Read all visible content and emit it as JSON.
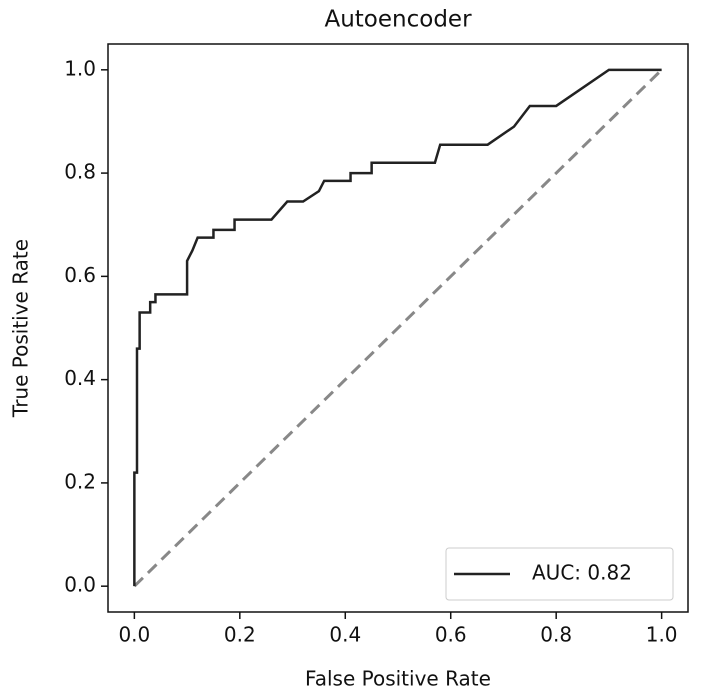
{
  "chart_data": {
    "type": "line",
    "title": "Autoencoder",
    "x_label": "False Positive Rate",
    "y_label": "True Positive Rate",
    "xlim": [
      -0.05,
      1.05
    ],
    "ylim": [
      -0.05,
      1.05
    ],
    "xticks": [
      {
        "value": 0,
        "label": "0.0"
      },
      0.2,
      0.4,
      0.6,
      0.8,
      {
        "value": 1,
        "label": "1.0"
      }
    ],
    "yticks": [
      {
        "value": 0,
        "label": "0.0"
      },
      0.2,
      0.4,
      0.6,
      0.8,
      {
        "value": 1,
        "label": "1.0"
      }
    ],
    "legend": "lower right",
    "series": [
      {
        "name": "AUC: 0.82",
        "color": "#222222",
        "linestyle": "solid",
        "x": [
          0,
          0,
          0.005,
          0.005,
          0.01,
          0.01,
          0.03,
          0.03,
          0.04,
          0.04,
          0.1,
          0.1,
          0.11,
          0.12,
          0.15,
          0.15,
          0.19,
          0.19,
          0.26,
          0.29,
          0.32,
          0.35,
          0.36,
          0.41,
          0.41,
          0.45,
          0.45,
          0.57,
          0.58,
          0.67,
          0.72,
          0.75,
          0.8,
          0.9,
          1.0
        ],
        "values": [
          0,
          0.22,
          0.22,
          0.46,
          0.46,
          0.53,
          0.53,
          0.55,
          0.55,
          0.565,
          0.565,
          0.63,
          0.65,
          0.675,
          0.675,
          0.69,
          0.69,
          0.71,
          0.71,
          0.745,
          0.745,
          0.765,
          0.785,
          0.785,
          0.8,
          0.8,
          0.82,
          0.82,
          0.855,
          0.855,
          0.89,
          0.93,
          0.93,
          1.0,
          1.0
        ]
      },
      {
        "color": "#888888",
        "linestyle": "dashed",
        "x": [
          0,
          1
        ],
        "values": [
          0,
          1
        ]
      }
    ]
  }
}
